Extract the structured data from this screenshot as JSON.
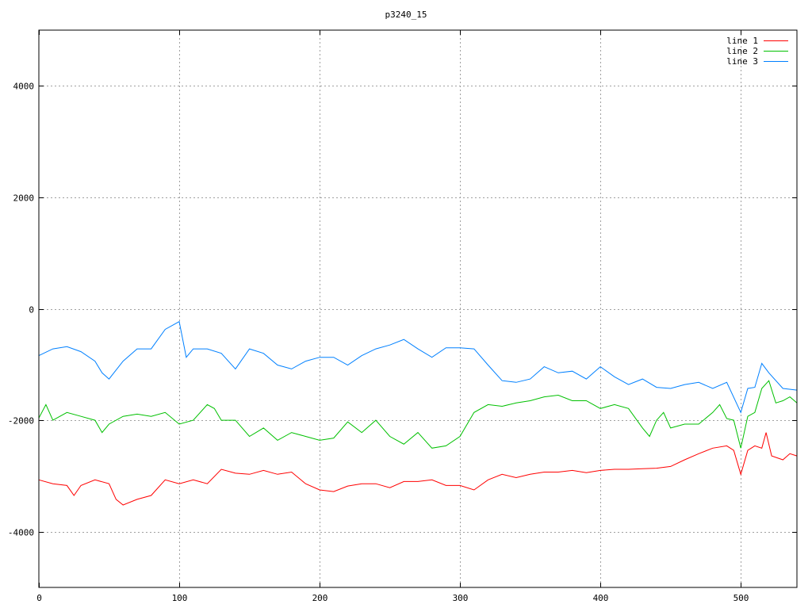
{
  "chart_data": {
    "type": "line",
    "title": "p3240_15",
    "xlabel": "",
    "ylabel": "",
    "xlim": [
      0,
      540
    ],
    "ylim": [
      -5000,
      5000
    ],
    "xticks": [
      0,
      100,
      200,
      300,
      400,
      500
    ],
    "yticks": [
      -4000,
      -2000,
      0,
      2000,
      4000
    ],
    "grid": true,
    "legend_position": "top-right",
    "series": [
      {
        "name": "line 1",
        "color": "#ff0000",
        "x": [
          0,
          10,
          20,
          25,
          30,
          40,
          50,
          55,
          60,
          70,
          80,
          90,
          100,
          110,
          120,
          130,
          140,
          150,
          160,
          170,
          180,
          190,
          200,
          210,
          220,
          230,
          240,
          250,
          260,
          270,
          280,
          290,
          300,
          310,
          320,
          330,
          340,
          350,
          360,
          370,
          380,
          390,
          400,
          410,
          420,
          430,
          440,
          450,
          460,
          470,
          480,
          490,
          495,
          500,
          505,
          510,
          515,
          518,
          522,
          530,
          535,
          540
        ],
        "y": [
          -3070,
          -3140,
          -3170,
          -3350,
          -3170,
          -3070,
          -3140,
          -3420,
          -3520,
          -3420,
          -3350,
          -3070,
          -3140,
          -3070,
          -3140,
          -2880,
          -2950,
          -2970,
          -2900,
          -2970,
          -2930,
          -3140,
          -3250,
          -3280,
          -3180,
          -3140,
          -3140,
          -3210,
          -3100,
          -3100,
          -3070,
          -3170,
          -3170,
          -3250,
          -3070,
          -2970,
          -3030,
          -2970,
          -2930,
          -2930,
          -2900,
          -2940,
          -2900,
          -2880,
          -2880,
          -2870,
          -2860,
          -2830,
          -2710,
          -2600,
          -2500,
          -2460,
          -2540,
          -2970,
          -2540,
          -2460,
          -2500,
          -2220,
          -2640,
          -2710,
          -2600,
          -2640
        ]
      },
      {
        "name": "line 2",
        "color": "#00c000",
        "x": [
          0,
          5,
          10,
          20,
          30,
          40,
          45,
          50,
          60,
          70,
          80,
          90,
          100,
          110,
          120,
          125,
          130,
          140,
          150,
          160,
          170,
          180,
          190,
          200,
          210,
          220,
          230,
          240,
          250,
          260,
          270,
          280,
          290,
          300,
          310,
          320,
          330,
          340,
          350,
          360,
          370,
          380,
          390,
          400,
          410,
          420,
          430,
          435,
          440,
          445,
          450,
          460,
          470,
          480,
          485,
          490,
          495,
          500,
          505,
          510,
          515,
          520,
          525,
          530,
          535,
          540
        ],
        "y": [
          -1960,
          -1720,
          -2000,
          -1860,
          -1930,
          -2000,
          -2220,
          -2070,
          -1930,
          -1890,
          -1930,
          -1860,
          -2070,
          -2000,
          -1720,
          -1790,
          -2000,
          -2000,
          -2290,
          -2140,
          -2360,
          -2220,
          -2290,
          -2360,
          -2320,
          -2030,
          -2220,
          -2000,
          -2290,
          -2430,
          -2220,
          -2500,
          -2460,
          -2290,
          -1860,
          -1720,
          -1750,
          -1690,
          -1650,
          -1580,
          -1550,
          -1650,
          -1650,
          -1790,
          -1720,
          -1790,
          -2140,
          -2290,
          -2000,
          -1860,
          -2140,
          -2070,
          -2070,
          -1860,
          -1720,
          -1970,
          -2000,
          -2500,
          -1930,
          -1860,
          -1430,
          -1290,
          -1690,
          -1650,
          -1580,
          -1690
        ]
      },
      {
        "name": "line 3",
        "color": "#0080ff",
        "x": [
          0,
          10,
          20,
          30,
          40,
          45,
          50,
          60,
          70,
          80,
          90,
          100,
          105,
          110,
          120,
          130,
          140,
          150,
          160,
          170,
          180,
          190,
          200,
          210,
          220,
          230,
          240,
          250,
          260,
          270,
          280,
          290,
          300,
          310,
          320,
          330,
          340,
          350,
          360,
          370,
          380,
          390,
          400,
          410,
          420,
          430,
          440,
          450,
          460,
          470,
          480,
          490,
          500,
          505,
          510,
          515,
          520,
          530,
          540
        ],
        "y": [
          -840,
          -720,
          -680,
          -770,
          -940,
          -1150,
          -1260,
          -940,
          -720,
          -720,
          -370,
          -230,
          -870,
          -720,
          -720,
          -800,
          -1080,
          -720,
          -800,
          -1010,
          -1080,
          -940,
          -870,
          -870,
          -1010,
          -840,
          -720,
          -650,
          -550,
          -720,
          -870,
          -700,
          -700,
          -720,
          -1010,
          -1290,
          -1320,
          -1260,
          -1040,
          -1150,
          -1120,
          -1260,
          -1040,
          -1220,
          -1360,
          -1260,
          -1410,
          -1430,
          -1360,
          -1320,
          -1430,
          -1320,
          -1860,
          -1430,
          -1410,
          -980,
          -1150,
          -1430,
          -1460
        ]
      }
    ]
  }
}
